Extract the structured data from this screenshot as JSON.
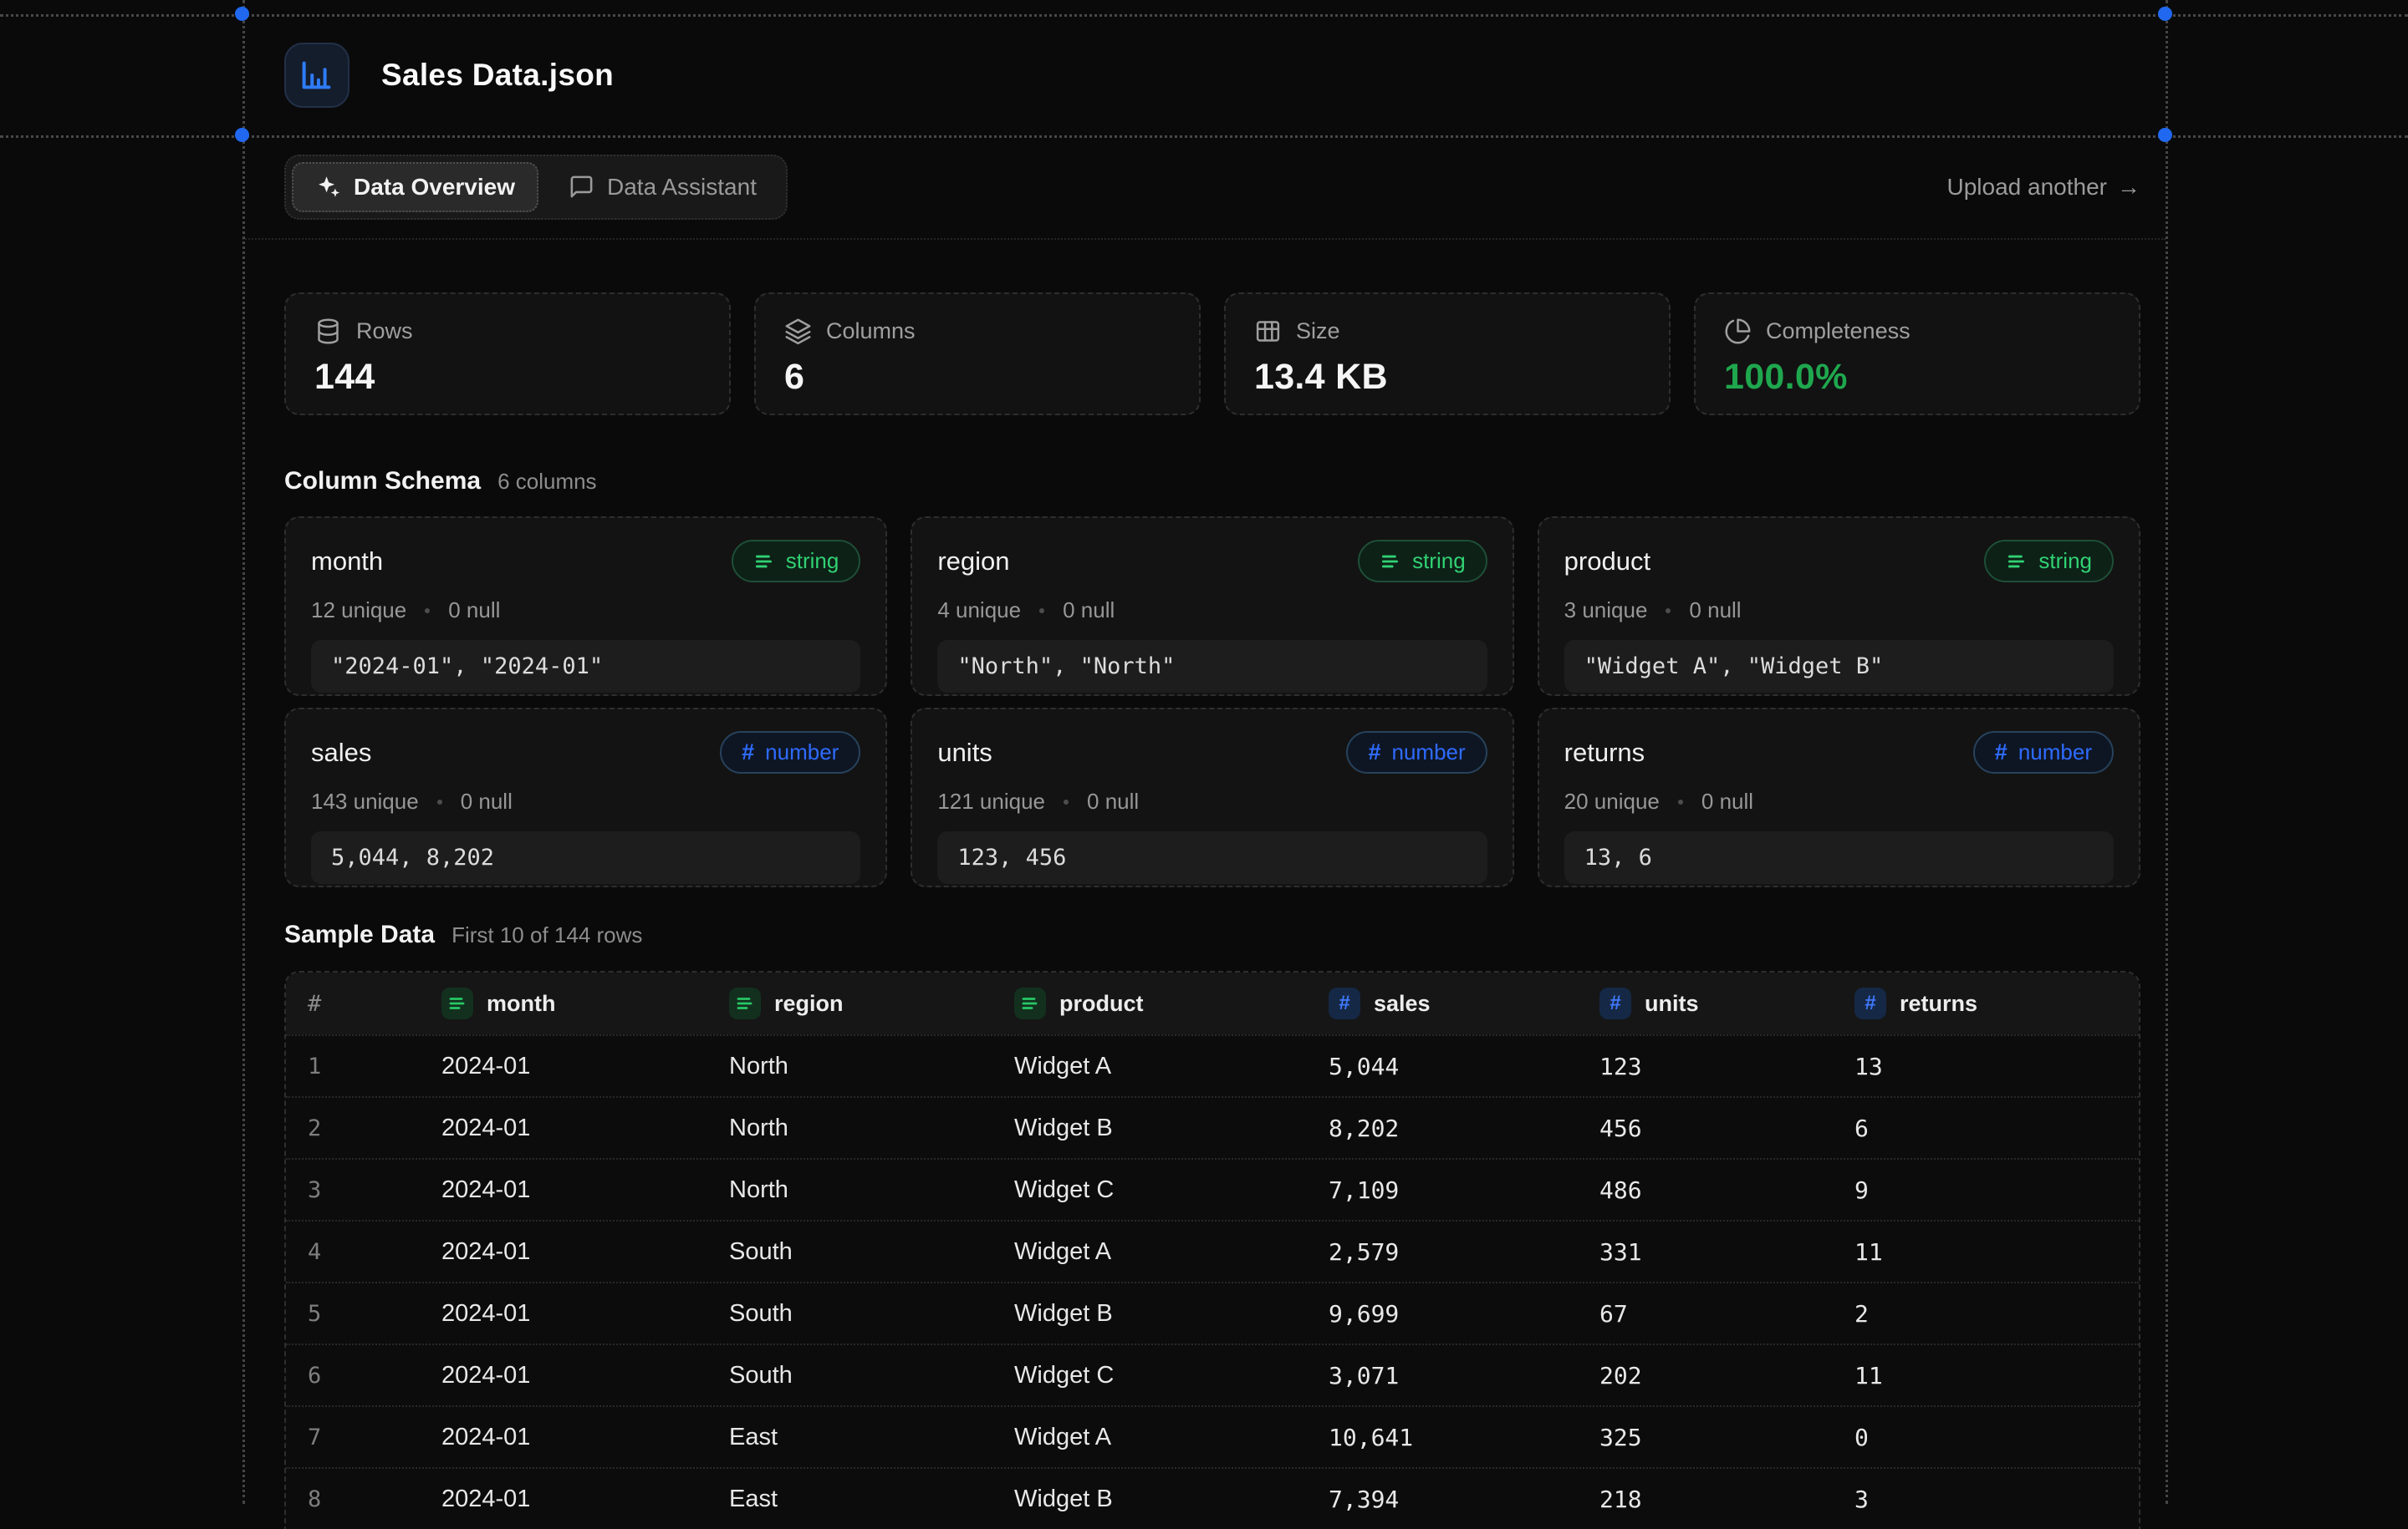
{
  "header": {
    "file_name": "Sales Data.json",
    "file_icon": "bar-chart-icon"
  },
  "tabs": [
    {
      "label": "Data Overview",
      "icon": "sparkles-icon",
      "active": true
    },
    {
      "label": "Data Assistant",
      "icon": "chat-bubble-icon",
      "active": false
    }
  ],
  "upload_link": {
    "label": "Upload another",
    "arrow": "→"
  },
  "stats": [
    {
      "label": "Rows",
      "value": "144",
      "icon": "database-icon",
      "value_color": "#f5f5f5"
    },
    {
      "label": "Columns",
      "value": "6",
      "icon": "layers-icon",
      "value_color": "#f5f5f5"
    },
    {
      "label": "Size",
      "value": "13.4 KB",
      "icon": "table-icon",
      "value_color": "#f5f5f5"
    },
    {
      "label": "Completeness",
      "value": "100.0%",
      "icon": "pie-chart-icon",
      "value_color": "#1fa74e"
    }
  ],
  "schema": {
    "title": "Column Schema",
    "subtitle": "6 columns",
    "columns": [
      {
        "name": "month",
        "type": "string",
        "unique": "12 unique",
        "nulls": "0 null",
        "sample": "\"2024-01\", \"2024-01\""
      },
      {
        "name": "region",
        "type": "string",
        "unique": "4 unique",
        "nulls": "0 null",
        "sample": "\"North\", \"North\""
      },
      {
        "name": "product",
        "type": "string",
        "unique": "3 unique",
        "nulls": "0 null",
        "sample": "\"Widget A\", \"Widget B\""
      },
      {
        "name": "sales",
        "type": "number",
        "unique": "143 unique",
        "nulls": "0 null",
        "sample": "5,044, 8,202"
      },
      {
        "name": "units",
        "type": "number",
        "unique": "121 unique",
        "nulls": "0 null",
        "sample": "123, 456"
      },
      {
        "name": "returns",
        "type": "number",
        "unique": "20 unique",
        "nulls": "0 null",
        "sample": "13, 6"
      }
    ]
  },
  "sample_table": {
    "title": "Sample Data",
    "subtitle": "First 10 of 144 rows",
    "index_header": "#",
    "columns": [
      {
        "label": "month",
        "type": "string"
      },
      {
        "label": "region",
        "type": "string"
      },
      {
        "label": "product",
        "type": "string"
      },
      {
        "label": "sales",
        "type": "number"
      },
      {
        "label": "units",
        "type": "number"
      },
      {
        "label": "returns",
        "type": "number"
      }
    ],
    "rows": [
      [
        "1",
        "2024-01",
        "North",
        "Widget A",
        "5,044",
        "123",
        "13"
      ],
      [
        "2",
        "2024-01",
        "North",
        "Widget B",
        "8,202",
        "456",
        "6"
      ],
      [
        "3",
        "2024-01",
        "North",
        "Widget C",
        "7,109",
        "486",
        "9"
      ],
      [
        "4",
        "2024-01",
        "South",
        "Widget A",
        "2,579",
        "331",
        "11"
      ],
      [
        "5",
        "2024-01",
        "South",
        "Widget B",
        "9,699",
        "67",
        "2"
      ],
      [
        "6",
        "2024-01",
        "South",
        "Widget C",
        "3,071",
        "202",
        "11"
      ],
      [
        "7",
        "2024-01",
        "East",
        "Widget A",
        "10,641",
        "325",
        "0"
      ],
      [
        "8",
        "2024-01",
        "East",
        "Widget B",
        "7,394",
        "218",
        "3"
      ]
    ]
  },
  "colors": {
    "background": "#0a0a0a",
    "string_green": "#31d173",
    "number_blue": "#2e6bff",
    "completeness_green": "#1fa74e",
    "selection_handle_blue": "#2068f0",
    "file_icon_blue": "#2e7bf6"
  }
}
